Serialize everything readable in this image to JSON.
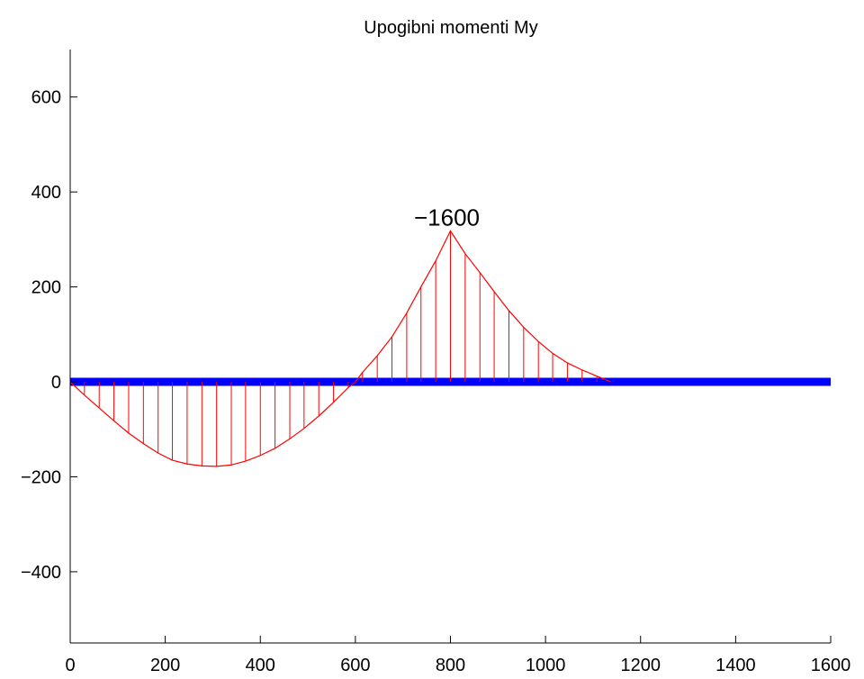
{
  "chart_data": {
    "type": "line",
    "title": "Upogibni momenti My",
    "xlabel": "",
    "ylabel": "",
    "xlim": [
      0,
      1600
    ],
    "ylim": [
      -550,
      700
    ],
    "xticks": [
      0,
      200,
      400,
      600,
      800,
      1000,
      1200,
      1400,
      1600
    ],
    "yticks": [
      -400,
      -200,
      0,
      200,
      400,
      600
    ],
    "xtick_labels": [
      "0",
      "200",
      "400",
      "600",
      "800",
      "1000",
      "1200",
      "1400",
      "1600"
    ],
    "ytick_labels": [
      "−400",
      "−200",
      "0",
      "200",
      "400",
      "600"
    ],
    "grid": false,
    "colors": {
      "beam": "#0000ff",
      "moment": "#ff0000",
      "axis": "#000000"
    },
    "beam": {
      "x": [
        0,
        1600
      ],
      "y": [
        0,
        0
      ]
    },
    "series": [
      {
        "x": [
          0,
          30,
          61,
          92,
          123,
          154,
          185,
          215,
          246,
          277,
          308,
          339,
          369,
          400,
          431,
          462,
          492,
          523,
          554,
          585,
          600,
          615,
          646,
          677,
          708,
          738,
          769,
          800,
          831,
          862,
          892,
          923,
          954,
          985,
          1015,
          1046,
          1077,
          1108,
          1138
        ],
        "y": [
          0,
          -28,
          -55,
          -82,
          -108,
          -130,
          -150,
          -165,
          -173,
          -177,
          -178,
          -175,
          -167,
          -155,
          -140,
          -120,
          -98,
          -72,
          -43,
          -12,
          0,
          20,
          55,
          95,
          145,
          200,
          255,
          318,
          270,
          230,
          190,
          150,
          115,
          85,
          60,
          40,
          25,
          12,
          0
        ]
      }
    ],
    "hatch_x": [
      30,
      61,
      92,
      123,
      154,
      185,
      215,
      246,
      277,
      308,
      339,
      369,
      400,
      431,
      462,
      492,
      523,
      554,
      585,
      615,
      646,
      677,
      708,
      738,
      769,
      800,
      831,
      862,
      892,
      923,
      954,
      985,
      1015,
      1046,
      1077,
      1108
    ],
    "annotations": [
      {
        "text": "−1600",
        "x": 800,
        "y": 318
      }
    ]
  }
}
